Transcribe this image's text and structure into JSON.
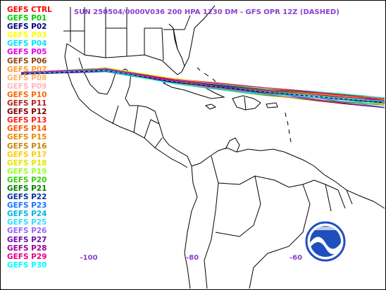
{
  "title": "SUN 250504/0000V036  200 HPA 1230 DM - GFS OPR 12Z (DASHED)",
  "longitude_ticks": [
    {
      "value": -100,
      "label": "-100"
    },
    {
      "value": -80,
      "label": "-80"
    },
    {
      "value": -60,
      "label": "-60"
    }
  ],
  "legend": [
    {
      "label": "GEFS CTRL",
      "color": "#ff0000"
    },
    {
      "label": "GEFS P01",
      "color": "#00cc00"
    },
    {
      "label": "GEFS P02",
      "color": "#000080"
    },
    {
      "label": "GEFS P03",
      "color": "#ffff00"
    },
    {
      "label": "GEFS P04",
      "color": "#00e5ff"
    },
    {
      "label": "GEFS P05",
      "color": "#e600e6"
    },
    {
      "label": "GEFS P06",
      "color": "#8b4513"
    },
    {
      "label": "GEFS P07",
      "color": "#ff9933"
    },
    {
      "label": "GEFS P08",
      "color": "#ffb366"
    },
    {
      "label": "GEFS P09",
      "color": "#ffb6c1"
    },
    {
      "label": "GEFS P10",
      "color": "#ff6600"
    },
    {
      "label": "GEFS P11",
      "color": "#b22222"
    },
    {
      "label": "GEFS P12",
      "color": "#800000"
    },
    {
      "label": "GEFS P13",
      "color": "#ff1a1a"
    },
    {
      "label": "GEFS P14",
      "color": "#ff5500"
    },
    {
      "label": "GEFS P15",
      "color": "#e68a00"
    },
    {
      "label": "GEFS P16",
      "color": "#cc8400"
    },
    {
      "label": "GEFS P17",
      "color": "#ffcc00"
    },
    {
      "label": "GEFS P18",
      "color": "#e6e600"
    },
    {
      "label": "GEFS P19",
      "color": "#99ff33"
    },
    {
      "label": "GEFS P20",
      "color": "#33cc00"
    },
    {
      "label": "GEFS P21",
      "color": "#008000"
    },
    {
      "label": "GEFS P22",
      "color": "#003399"
    },
    {
      "label": "GEFS P23",
      "color": "#1a75ff"
    },
    {
      "label": "GEFS P24",
      "color": "#00b3e6"
    },
    {
      "label": "GEFS P25",
      "color": "#33ddff"
    },
    {
      "label": "GEFS P26",
      "color": "#9966ff"
    },
    {
      "label": "GEFS P27",
      "color": "#6a0dad"
    },
    {
      "label": "GEFS P28",
      "color": "#990099"
    },
    {
      "label": "GEFS P29",
      "color": "#e6007e"
    },
    {
      "label": "GEFS P30",
      "color": "#00ffff"
    }
  ],
  "colors": {
    "title_text": "#8a3fd1",
    "coastline": "#000000",
    "noaa_blue": "#1f4fbf"
  },
  "icons": {
    "logo": "noaa-logo"
  }
}
